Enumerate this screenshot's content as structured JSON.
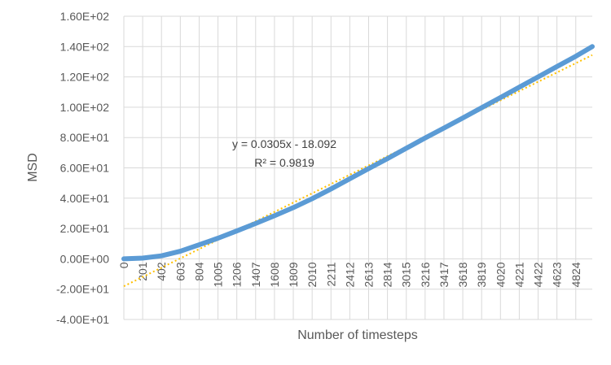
{
  "chart_data": {
    "type": "line",
    "title": "",
    "xlabel": "Number of timesteps",
    "ylabel": "MSD",
    "xlim": [
      0,
      5000
    ],
    "ylim": [
      -40,
      160
    ],
    "y_ticks": [
      160,
      140,
      120,
      100,
      80,
      60,
      40,
      20,
      0,
      -20,
      -40
    ],
    "y_tick_labels": [
      "1.60E+02",
      "1.40E+02",
      "1.20E+02",
      "1.00E+02",
      "8.00E+01",
      "6.00E+01",
      "4.00E+01",
      "2.00E+01",
      "0.00E+00",
      "-2.00E+01",
      "-4.00E+01"
    ],
    "x_tick_labels": [
      "0",
      "201",
      "402",
      "603",
      "804",
      "1005",
      "1206",
      "1407",
      "1608",
      "1809",
      "2010",
      "2211",
      "2412",
      "2613",
      "2814",
      "3015",
      "3216",
      "3417",
      "3618",
      "3819",
      "4020",
      "4221",
      "4422",
      "4623",
      "4824"
    ],
    "grid": true,
    "series": [
      {
        "values": [
          [
            0,
            0
          ],
          [
            201,
            0.5
          ],
          [
            402,
            2
          ],
          [
            603,
            5
          ],
          [
            804,
            9.3
          ],
          [
            1005,
            13.6
          ],
          [
            1206,
            18.4
          ],
          [
            1407,
            23.3
          ],
          [
            1608,
            28.4
          ],
          [
            1809,
            33.8
          ],
          [
            2010,
            39.7
          ],
          [
            2211,
            46.1
          ],
          [
            2412,
            52.8
          ],
          [
            2613,
            59.5
          ],
          [
            2814,
            66.1
          ],
          [
            3015,
            72.9
          ],
          [
            3216,
            79.7
          ],
          [
            3417,
            86.3
          ],
          [
            3618,
            92.9
          ],
          [
            3819,
            99.7
          ],
          [
            4020,
            106.4
          ],
          [
            4221,
            113.2
          ],
          [
            4422,
            120.0
          ],
          [
            4623,
            126.8
          ],
          [
            4824,
            133.6
          ],
          [
            5000,
            140.0
          ]
        ],
        "color": "#5b9bd5"
      },
      {
        "name": "trendline",
        "type": "linear",
        "slope": 0.0305,
        "intercept": -18.092,
        "color": "#ffc000",
        "equation": "y = 0.0305x - 18.092",
        "r_squared": "R² = 0.9819"
      }
    ]
  }
}
